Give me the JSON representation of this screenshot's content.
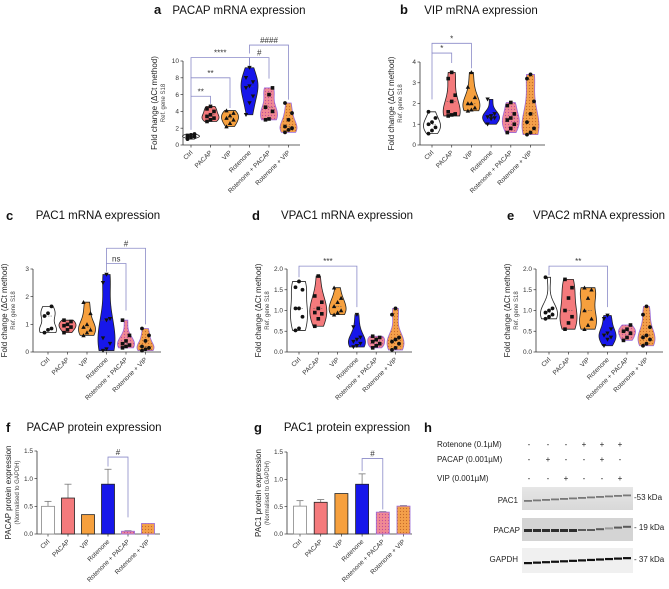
{
  "figure": {
    "letters": [
      "a",
      "b",
      "c",
      "d",
      "e",
      "f",
      "g",
      "h"
    ]
  },
  "colors": {
    "Ctrl": "#ffffff",
    "PACAP": "#f47a7c",
    "VIP": "#f6a03e",
    "Rotenone": "#1717ea",
    "Rotenone + PACAP": "#f08a94",
    "Rotenone + VIP": "#f4a04a",
    "combo_border": "#9a6ad8"
  },
  "chart_data": [
    {
      "id": "a",
      "type": "violin",
      "title": "PACAP mRNA expression",
      "ylabel": "Fold change (ΔCt method)",
      "ylabel2": "Ref. gene S18",
      "ylim": [
        0,
        10
      ],
      "yticks": [
        "0",
        "2",
        "4",
        "6",
        "8",
        "10"
      ],
      "ytick_values": [
        0,
        2,
        4,
        6,
        8,
        10
      ],
      "categories": [
        "Ctrl",
        "PACAP",
        "VIP",
        "Rotenone",
        "Rotenone + PACAP",
        "Rotenone + VIP"
      ],
      "series": [
        [
          0.7,
          0.9,
          1.0,
          1.1,
          1.2,
          1.3,
          1.0
        ],
        [
          2.8,
          3.0,
          3.2,
          3.4,
          3.6,
          4.0,
          4.3,
          4.6
        ],
        [
          2.2,
          2.6,
          3.0,
          3.2,
          3.5,
          3.8,
          4.1
        ],
        [
          3.6,
          5.0,
          5.8,
          6.8,
          7.0,
          7.5,
          8.0,
          9.2
        ],
        [
          3.0,
          3.1,
          4.0,
          4.5,
          6.0,
          6.8
        ],
        [
          1.5,
          1.8,
          2.0,
          2.2,
          3.0,
          3.8,
          5.0
        ]
      ],
      "annotations": [
        {
          "from": 0,
          "to": 1,
          "level": 5.8,
          "from_end": 1.8,
          "to_end": 4.9,
          "label": "**"
        },
        {
          "from": 0,
          "to": 2,
          "level": 8.0,
          "from_end": 5.8,
          "to_end": 4.4,
          "label": "**"
        },
        {
          "from": 0,
          "to": 3,
          "level": 10.4,
          "from_end": 8.0,
          "to_end": 9.4,
          "label": "****"
        },
        {
          "from": 3,
          "to": 4,
          "level": 10.4,
          "from_end": 9.4,
          "to_end": 7.9,
          "label": "#"
        },
        {
          "from": 3,
          "to": 5,
          "level": 11.9,
          "from_end": 10.9,
          "to_end": 5.4,
          "label": "####"
        }
      ]
    },
    {
      "id": "b",
      "type": "violin",
      "title": "VIP mRNA expression",
      "ylabel": "Fold change (ΔCt method)",
      "ylabel2": "Ref. gene S18",
      "ylim": [
        0,
        4
      ],
      "yticks": [
        "0",
        "1",
        "2",
        "3",
        "4"
      ],
      "ytick_values": [
        0,
        1,
        2,
        3,
        4
      ],
      "categories": [
        "Ctrl",
        "PACAP",
        "VIP",
        "Rotenone",
        "Rotenone + PACAP",
        "Rotenone + VIP"
      ],
      "series": [
        [
          0.55,
          0.7,
          0.85,
          1.0,
          1.1,
          1.3,
          1.6
        ],
        [
          1.4,
          1.45,
          1.5,
          1.6,
          2.1,
          2.4,
          3.2,
          3.5
        ],
        [
          1.65,
          1.7,
          1.8,
          2.0,
          2.0,
          2.3,
          2.8,
          3.5
        ],
        [
          1.0,
          1.25,
          1.3,
          1.35,
          1.4,
          1.5,
          2.2
        ],
        [
          0.6,
          0.8,
          1.0,
          1.2,
          1.3,
          1.5,
          1.9,
          2.05
        ],
        [
          0.5,
          0.6,
          0.8,
          1.1,
          1.5,
          2.1,
          3.2,
          3.4
        ]
      ],
      "annotations": [
        {
          "from": 0,
          "to": 1,
          "level": 4.43,
          "from_end": 2.2,
          "to_end": 3.95,
          "label": "*"
        },
        {
          "from": 0,
          "to": 2,
          "level": 4.9,
          "from_end": 4.43,
          "to_end": 3.7,
          "label": "*"
        }
      ]
    },
    {
      "id": "c",
      "type": "violin",
      "title": "PAC1 mRNA expression",
      "ylabel": "Fold change (ΔCt method)",
      "ylabel2": "Ref. gene S18",
      "ylim": [
        0,
        3
      ],
      "yticks": [
        "0",
        "1",
        "2",
        "3"
      ],
      "ytick_values": [
        0,
        1,
        2,
        3
      ],
      "categories": [
        "Ctrl",
        "PACAP",
        "VIP",
        "Rotenone",
        "Rotenone + PACAP",
        "Rotenone + VIP"
      ],
      "series": [
        [
          0.7,
          0.8,
          0.85,
          1.3,
          1.4,
          1.65
        ],
        [
          0.7,
          0.8,
          0.9,
          0.95,
          1.0,
          1.1,
          1.15
        ],
        [
          0.6,
          0.7,
          0.8,
          0.9,
          1.0,
          1.4,
          1.8
        ],
        [
          0.05,
          0.1,
          0.3,
          0.5,
          1.15,
          1.2,
          2.5,
          2.8
        ],
        [
          0.15,
          0.2,
          0.25,
          0.3,
          0.4,
          0.6,
          1.15
        ],
        [
          0.05,
          0.1,
          0.15,
          0.2,
          0.4,
          0.6,
          0.85
        ]
      ],
      "annotations": [
        {
          "from": 3,
          "to": 4,
          "level": 3.2,
          "from_end": 2.9,
          "to_end": 1.5,
          "label": "ns"
        },
        {
          "from": 3,
          "to": 5,
          "level": 3.75,
          "from_end": 3.2,
          "to_end": 1.0,
          "label": "#"
        }
      ]
    },
    {
      "id": "d",
      "type": "violin",
      "title": "VPAC1 mRNA expression",
      "ylabel": "Fold change (ΔCt method)",
      "ylabel2": "Ref. gene S18",
      "ylim": [
        0,
        2
      ],
      "yticks": [
        "0.0",
        "0.5",
        "1.0",
        "1.5",
        "2.0"
      ],
      "ytick_values": [
        0,
        0.5,
        1,
        1.5,
        2
      ],
      "categories": [
        "Ctrl",
        "PACAP",
        "VIP",
        "Rotenone",
        "Rotenone + PACAP",
        "Rotenone + VIP"
      ],
      "series": [
        [
          0.52,
          0.57,
          0.85,
          1.05,
          1.05,
          1.5,
          1.56,
          1.7
        ],
        [
          0.62,
          0.8,
          0.92,
          0.95,
          1.05,
          1.2,
          1.35,
          1.83
        ],
        [
          0.9,
          0.95,
          1.0,
          1.1,
          1.2,
          1.3,
          1.55
        ],
        [
          0.12,
          0.15,
          0.2,
          0.25,
          0.3,
          0.35,
          0.6,
          0.9
        ],
        [
          0.1,
          0.15,
          0.2,
          0.25,
          0.3,
          0.35,
          0.38
        ],
        [
          0.05,
          0.1,
          0.2,
          0.25,
          0.3,
          0.35,
          0.9,
          1.05
        ]
      ],
      "annotations": [
        {
          "from": 0,
          "to": 3,
          "level": 2.07,
          "from_end": 1.8,
          "to_end": 1.08,
          "label": "***"
        }
      ]
    },
    {
      "id": "e",
      "type": "violin",
      "title": "VPAC2 mRNA expression",
      "ylabel": "Fold change (ΔCt method)",
      "ylabel2": "Ref. gene S18",
      "ylim": [
        0,
        2
      ],
      "yticks": [
        "0.0",
        "0.5",
        "1.0",
        "1.5",
        "2.0"
      ],
      "ytick_values": [
        0,
        0.5,
        1,
        1.5,
        2
      ],
      "categories": [
        "Ctrl",
        "PACAP",
        "VIP",
        "Rotenone",
        "Rotenone + PACAP",
        "Rotenone + VIP"
      ],
      "series": [
        [
          0.8,
          0.85,
          0.9,
          0.95,
          1.0,
          1.05,
          1.8
        ],
        [
          0.55,
          0.7,
          0.85,
          1.0,
          1.3,
          1.55,
          1.75
        ],
        [
          0.55,
          0.65,
          0.8,
          1.0,
          1.3,
          1.5,
          1.55
        ],
        [
          0.15,
          0.3,
          0.35,
          0.4,
          0.45,
          0.55,
          0.8,
          0.88
        ],
        [
          0.28,
          0.35,
          0.45,
          0.5,
          0.55,
          0.65
        ],
        [
          0.15,
          0.2,
          0.3,
          0.35,
          0.4,
          0.6,
          0.9,
          1.1
        ]
      ],
      "annotations": [
        {
          "from": 0,
          "to": 3,
          "level": 2.07,
          "from_end": 1.85,
          "to_end": 1.08,
          "label": "**"
        }
      ]
    },
    {
      "id": "f",
      "type": "bar",
      "title": "PACAP protein expression",
      "ylabel": "PACAP protein expression",
      "ylabel2": "(Normalised to GAPDH)",
      "ylim": [
        0,
        1.5
      ],
      "yticks": [
        "0.0",
        "0.5",
        "1.0",
        "1.5"
      ],
      "ytick_values": [
        0,
        0.5,
        1,
        1.5
      ],
      "categories": [
        "Ctrl",
        "PACAP",
        "VIP",
        "Rotenone",
        "Rotenone + PACAP",
        "Rotenone + VIP"
      ],
      "values": [
        0.5,
        0.65,
        0.35,
        0.9,
        0.05,
        0.19
      ],
      "errors": [
        0.09,
        0.25,
        0,
        0.27,
        0.01,
        0
      ],
      "annotations": [
        {
          "from": 3,
          "to": 4,
          "level": 1.39,
          "from_end": 1.22,
          "to_end": 0.3,
          "label": "#"
        }
      ]
    },
    {
      "id": "g",
      "type": "bar",
      "title": "PAC1 protein expression",
      "ylabel": "PAC1 protein expression",
      "ylabel2": "(Normalised to  GAPDH)",
      "ylim": [
        0,
        1.5
      ],
      "yticks": [
        "0.0",
        "0.5",
        "1.0",
        "1.5"
      ],
      "ytick_values": [
        0,
        0.5,
        1,
        1.5
      ],
      "categories": [
        "Ctrl",
        "PACAP",
        "VIP",
        "Rotenone",
        "Rotenone + PACAP",
        "Rotenone + VIP"
      ],
      "values": [
        0.51,
        0.58,
        0.74,
        0.91,
        0.4,
        0.51
      ],
      "errors": [
        0.1,
        0.05,
        0,
        0.19,
        0.01,
        0.01
      ],
      "annotations": [
        {
          "from": 3,
          "to": 4,
          "level": 1.38,
          "from_end": 1.15,
          "to_end": 0.45,
          "label": "#"
        }
      ]
    }
  ],
  "blot": {
    "conditions": [
      {
        "label": "Rotenone (0.1µM)",
        "signs": [
          "-",
          "-",
          "-",
          "+",
          "+",
          "+"
        ]
      },
      {
        "label": "PACAP (0.001µM)",
        "signs": [
          "-",
          "+",
          "-",
          "-",
          "+",
          "-"
        ]
      },
      {
        "label": "VIP (0.001µM)",
        "signs": [
          "-",
          "-",
          "+",
          "-",
          "-",
          "+"
        ]
      }
    ],
    "bands": [
      {
        "label": "PAC1",
        "size": "-53 kDa"
      },
      {
        "label": "PACAP",
        "size": "- 19 kDa"
      },
      {
        "label": "GAPDH",
        "size": "- 37 kDa"
      }
    ]
  }
}
